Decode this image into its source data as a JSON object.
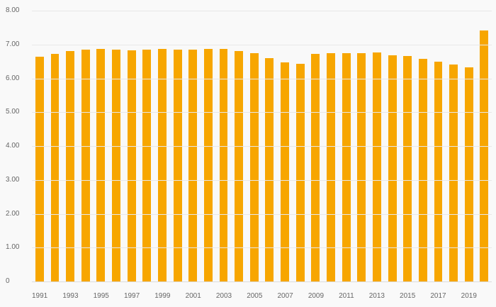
{
  "chart_data": {
    "type": "bar",
    "title": "",
    "xlabel": "",
    "ylabel": "",
    "categories": [
      1991,
      1992,
      1993,
      1994,
      1995,
      1996,
      1997,
      1998,
      1999,
      2000,
      2001,
      2002,
      2003,
      2004,
      2005,
      2006,
      2007,
      2008,
      2009,
      2010,
      2011,
      2012,
      2013,
      2014,
      2015,
      2016,
      2017,
      2018,
      2019,
      2020
    ],
    "values": [
      6.63,
      6.72,
      6.8,
      6.85,
      6.86,
      6.85,
      6.83,
      6.84,
      6.87,
      6.85,
      6.84,
      6.87,
      6.87,
      6.81,
      6.75,
      6.6,
      6.48,
      6.44,
      6.72,
      6.75,
      6.74,
      6.74,
      6.77,
      6.68,
      6.65,
      6.57,
      6.5,
      6.4,
      6.32,
      7.42
    ],
    "ylim": [
      0,
      8
    ],
    "y_ticks": [
      {
        "value": 8,
        "label": "8.00"
      },
      {
        "value": 7,
        "label": "7.00"
      },
      {
        "value": 6,
        "label": "6.00"
      },
      {
        "value": 5,
        "label": "5.00"
      },
      {
        "value": 4,
        "label": "4.00"
      },
      {
        "value": 3,
        "label": "3.00"
      },
      {
        "value": 2,
        "label": "2.00"
      },
      {
        "value": 1,
        "label": "1.00"
      },
      {
        "value": 0,
        "label": "0"
      }
    ],
    "x_tick_labels": [
      "1991",
      "1993",
      "1995",
      "1997",
      "1999",
      "2001",
      "2003",
      "2005",
      "2007",
      "2009",
      "2011",
      "2013",
      "2015",
      "2017",
      "2019"
    ],
    "grid": true,
    "legend": "none",
    "bar_color": "#F7A600",
    "gridline_color": "#e8e8e8",
    "tick_label_color": "#666666",
    "background_color": "#f9f9f9"
  }
}
